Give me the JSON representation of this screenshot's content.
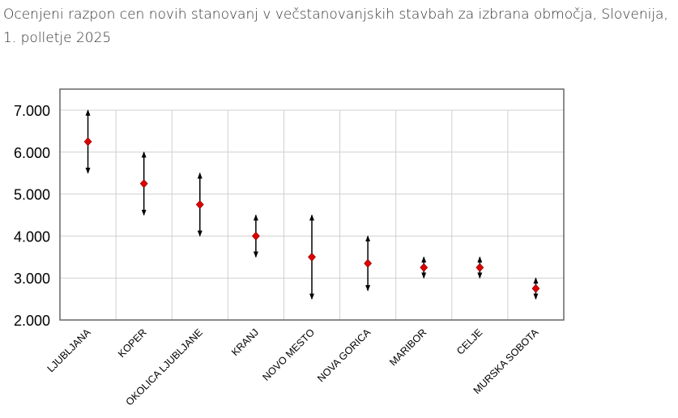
{
  "chart_data": {
    "type": "range",
    "title": "Ocenjeni razpon cen novih stanovanj v večstanovanjskih stavbah za izbrana območja, Slovenija, 1. polletje 2025",
    "xlabel": "",
    "ylabel": "",
    "ylim": [
      2000,
      7000
    ],
    "yticks": [
      2000,
      3000,
      4000,
      5000,
      6000,
      7000
    ],
    "ytick_labels": [
      "2.000",
      "3.000",
      "4.000",
      "5.000",
      "6.000",
      "7.000"
    ],
    "grid": true,
    "categories": [
      "LJUBLJANA",
      "KOPER",
      "OKOLICA LJUBLJANE",
      "KRANJ",
      "NOVO MESTO",
      "NOVA GORICA",
      "MARIBOR",
      "CELJE",
      "MURSKA SOBOTA"
    ],
    "mid": [
      6250,
      5250,
      4750,
      4000,
      3500,
      3350,
      3250,
      3250,
      2750
    ],
    "low": [
      5500,
      4500,
      4000,
      3500,
      2500,
      2700,
      3000,
      3000,
      2500
    ],
    "high": [
      7000,
      6000,
      5500,
      4500,
      4500,
      4000,
      3500,
      3500,
      3000
    ],
    "colors": {
      "marker": "#e00000",
      "range": "#000000",
      "grid": "#d0d0d0",
      "axis": "#666666"
    }
  }
}
